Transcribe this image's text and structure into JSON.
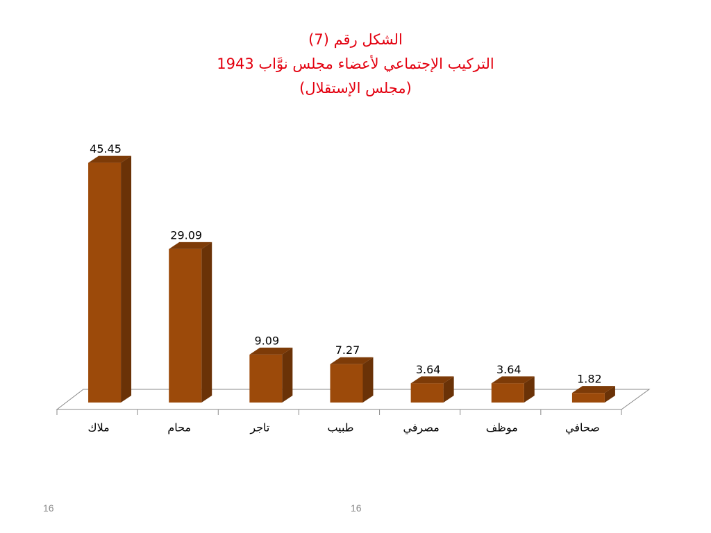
{
  "chart_data": {
    "type": "bar",
    "title": [
      "الشكل رقم (7)",
      "التركيب الإجتماعي لأعضاء مجلس نوَّاب 1943",
      "(مجلس الإستقلال)"
    ],
    "categories": [
      "ملاك",
      "محام",
      "تاجر",
      "طبيب",
      "مصرفي",
      "موظف",
      "صحافي"
    ],
    "values": [
      45.45,
      29.09,
      9.09,
      7.27,
      3.64,
      3.64,
      1.82
    ],
    "color": "#9c4a0a",
    "ylim": [
      0,
      50
    ]
  },
  "footer": {
    "left": "16",
    "center": "16"
  }
}
